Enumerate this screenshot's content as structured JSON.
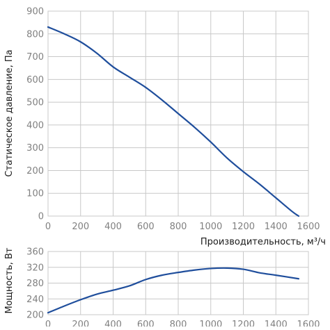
{
  "colors": {
    "curve": "#1f4e9c",
    "grid": "#c8c8c8",
    "tick_text": "#808080",
    "axis_title": "#1a1a1a"
  },
  "chart_data": [
    {
      "type": "line",
      "xlabel": "Производительность, м³/ч",
      "ylabel": "Статическое давление, Па",
      "xlim": [
        0,
        1600
      ],
      "ylim": [
        0,
        900
      ],
      "xticks": [
        "0",
        "200",
        "400",
        "600",
        "800",
        "1000",
        "1200",
        "1400",
        "1600"
      ],
      "yticks": [
        "0",
        "100",
        "200",
        "300",
        "400",
        "500",
        "600",
        "700",
        "800",
        "900"
      ],
      "grid": true,
      "series": [
        {
          "x": [
            0,
            100,
            200,
            300,
            400,
            500,
            600,
            700,
            800,
            900,
            1000,
            1100,
            1200,
            1300,
            1400,
            1500,
            1540
          ],
          "y": [
            830,
            800,
            765,
            715,
            655,
            610,
            565,
            510,
            450,
            390,
            325,
            255,
            195,
            140,
            80,
            20,
            0
          ]
        }
      ]
    },
    {
      "type": "line",
      "xlabel": "",
      "ylabel": "Мощность, Вт",
      "xlim": [
        0,
        1600
      ],
      "ylim": [
        200,
        360
      ],
      "xticks": [
        "0",
        "200",
        "400",
        "600",
        "800",
        "1000",
        "1200",
        "1400",
        "1600"
      ],
      "yticks": [
        "200",
        "240",
        "280",
        "320",
        "360"
      ],
      "grid": true,
      "series": [
        {
          "x": [
            0,
            100,
            200,
            300,
            400,
            500,
            600,
            700,
            800,
            900,
            1000,
            1100,
            1200,
            1300,
            1400,
            1540
          ],
          "y": [
            205,
            222,
            238,
            252,
            262,
            273,
            289,
            300,
            307,
            313,
            317,
            318,
            315,
            306,
            300,
            291
          ]
        }
      ]
    }
  ]
}
